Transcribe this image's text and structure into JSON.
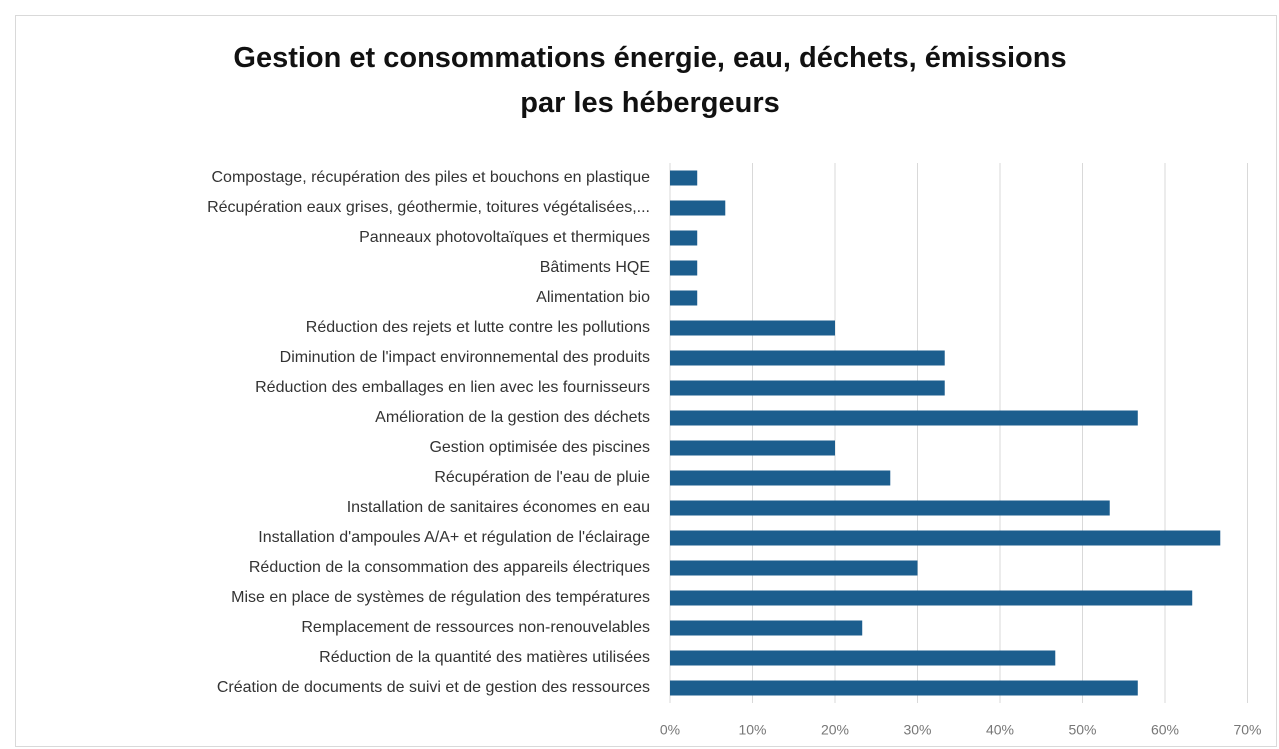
{
  "chart_data": {
    "type": "barh",
    "title": "Gestion et consommations  énergie, eau, déchets, émissions\npar les hébergeurs",
    "categories": [
      "Compostage, récupération des piles et bouchons en plastique",
      "Récupération eaux grises, géothermie, toitures végétalisées,...",
      "Panneaux photovoltaïques et thermiques",
      "Bâtiments HQE",
      "Alimentation bio",
      "Réduction des rejets et lutte contre les pollutions",
      "Diminution de l'impact environnemental des produits",
      "Réduction des emballages en lien avec les fournisseurs",
      "Amélioration de la gestion des déchets",
      "Gestion optimisée des piscines",
      "Récupération de l'eau de pluie",
      "Installation de sanitaires économes en eau",
      "Installation d'ampoules A/A+ et régulation de l'éclairage",
      "Réduction de la consommation des appareils électriques",
      "Mise en place de systèmes de régulation des températures",
      "Remplacement de ressources non-renouvelables",
      "Réduction de la quantité des matières utilisées",
      "Création de documents de suivi et de gestion des ressources"
    ],
    "values": [
      3.3,
      6.7,
      3.3,
      3.3,
      3.3,
      20,
      33.3,
      33.3,
      56.7,
      20,
      26.7,
      53.3,
      66.7,
      30,
      63.3,
      23.3,
      46.7,
      56.7
    ],
    "color": "#1c5e8e",
    "xlim": [
      0,
      70
    ],
    "xticks": [
      {
        "value": 0,
        "label": "0%"
      },
      {
        "value": 10,
        "label": "10%"
      },
      {
        "value": 20,
        "label": "20%"
      },
      {
        "value": 30,
        "label": "30%"
      },
      {
        "value": 40,
        "label": "40%"
      },
      {
        "value": 50,
        "label": "50%"
      },
      {
        "value": 60,
        "label": "60%"
      },
      {
        "value": 70,
        "label": "70%"
      }
    ],
    "grid": true
  }
}
